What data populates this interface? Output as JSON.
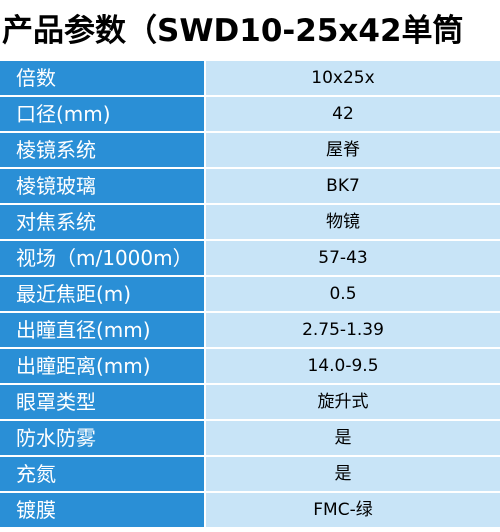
{
  "title": "产品参数（SWD10-25x42单筒",
  "rows": [
    {
      "label": "倍数",
      "value": "10x25x"
    },
    {
      "label": "口径(mm)",
      "value": "42"
    },
    {
      "label": "棱镜系统",
      "value": "屋脊"
    },
    {
      "label": "棱镜玻璃",
      "value": "BK7"
    },
    {
      "label": "对焦系统",
      "value": "物镜"
    },
    {
      "label": "视场（m/1000m）",
      "value": "57-43"
    },
    {
      "label": "最近焦距(m)",
      "value": "0.5"
    },
    {
      "label": "出瞳直径(mm)",
      "value": "2.75-1.39"
    },
    {
      "label": "出瞳距离(mm)",
      "value": "14.0-9.5"
    },
    {
      "label": "眼罩类型",
      "value": "旋升式"
    },
    {
      "label": "防水防雾",
      "value": "是"
    },
    {
      "label": "充氮",
      "value": "是"
    },
    {
      "label": "镀膜",
      "value": "FMC-绿"
    }
  ],
  "colors": {
    "label_bg": "#2a8fd6",
    "value_bg": "#c8e4f7"
  }
}
